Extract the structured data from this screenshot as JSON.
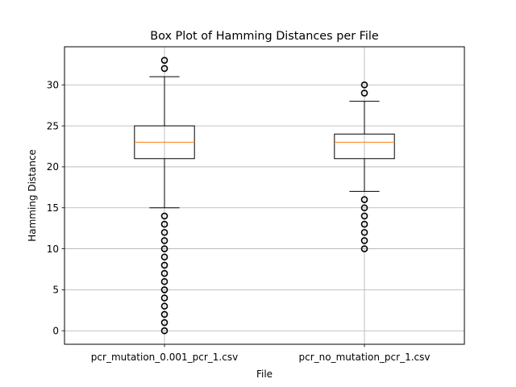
{
  "chart_data": {
    "type": "box",
    "title": "Box Plot of Hamming Distances per File",
    "xlabel": "File",
    "ylabel": "Hamming Distance",
    "ylim": [
      -1.65,
      34.65
    ],
    "yticks": [
      0,
      5,
      10,
      15,
      20,
      25,
      30
    ],
    "grid": true,
    "colors": {
      "median": "#ff7f0e",
      "box": "#000000",
      "grid": "#b0b0b0"
    },
    "series": [
      {
        "name": "pcr_mutation_0.001_pcr_1.csv",
        "whisker_low": 15,
        "q1": 21,
        "median": 23,
        "q3": 25,
        "whisker_high": 31,
        "outliers": [
          0,
          1,
          2,
          3,
          4,
          5,
          6,
          7,
          8,
          9,
          10,
          11,
          12,
          13,
          14,
          32,
          33
        ]
      },
      {
        "name": "pcr_no_mutation_pcr_1.csv",
        "whisker_low": 17,
        "q1": 21,
        "median": 23,
        "q3": 24,
        "whisker_high": 28,
        "outliers": [
          10,
          11,
          12,
          13,
          14,
          15,
          16,
          29,
          30
        ]
      }
    ]
  }
}
